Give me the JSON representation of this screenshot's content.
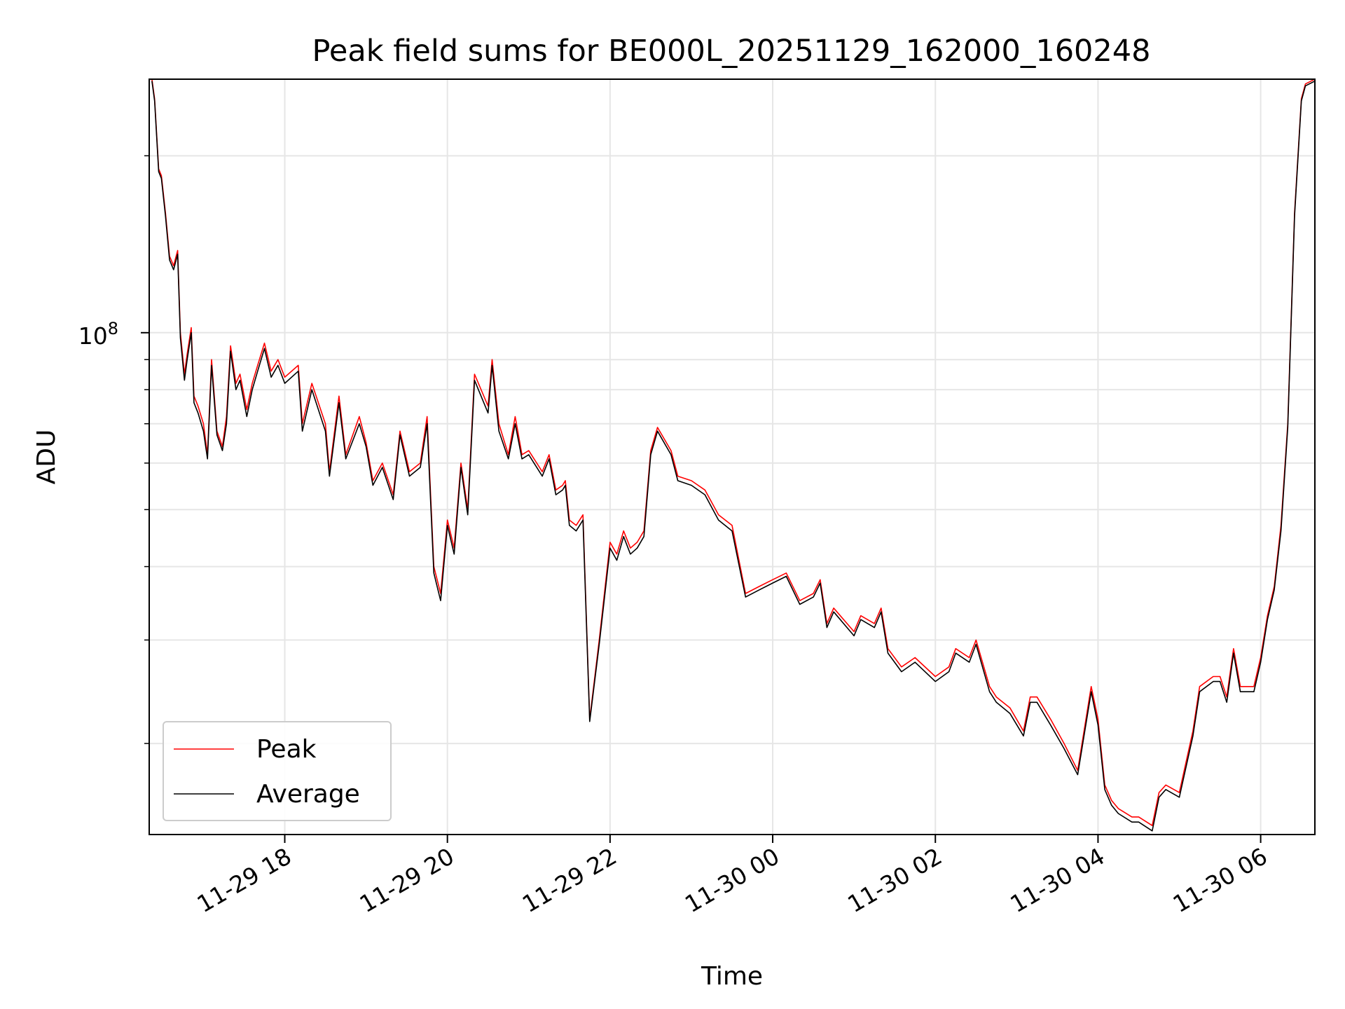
{
  "chart_data": {
    "type": "line",
    "title": "Peak field sums for BE000L_20251129_162000_160248",
    "xlabel": "Time",
    "ylabel": "ADU",
    "x_is_datetime": true,
    "xlim": [
      "2025-11-29 16:20",
      "2025-11-30 06:40"
    ],
    "ylog": true,
    "ylim": [
      14000000,
      270000000
    ],
    "ytick_labels": [
      {
        "value": 100000000,
        "base": "10",
        "exp": "8"
      }
    ],
    "xtick_labels": [
      {
        "value": "2025-11-29 18:00",
        "label": "11-29 18"
      },
      {
        "value": "2025-11-29 20:00",
        "label": "11-29 20"
      },
      {
        "value": "2025-11-29 22:00",
        "label": "11-29 22"
      },
      {
        "value": "2025-11-30 00:00",
        "label": "11-30 00"
      },
      {
        "value": "2025-11-30 02:00",
        "label": "11-30 02"
      },
      {
        "value": "2025-11-30 04:00",
        "label": "11-30 04"
      },
      {
        "value": "2025-11-30 06:00",
        "label": "11-30 06"
      }
    ],
    "grid": true,
    "legend_position": "lower-left",
    "series": [
      {
        "name": "Peak",
        "color": "#ff0000",
        "x": [
          "2025-11-29 16:22",
          "2025-11-29 16:24",
          "2025-11-29 16:27",
          "2025-11-29 16:29",
          "2025-11-29 16:32",
          "2025-11-29 16:35",
          "2025-11-29 16:38",
          "2025-11-29 16:41",
          "2025-11-29 16:43",
          "2025-11-29 16:46",
          "2025-11-29 16:48",
          "2025-11-29 16:51",
          "2025-11-29 16:53",
          "2025-11-29 16:56",
          "2025-11-29 17:00",
          "2025-11-29 17:03",
          "2025-11-29 17:06",
          "2025-11-29 17:10",
          "2025-11-29 17:14",
          "2025-11-29 17:17",
          "2025-11-29 17:20",
          "2025-11-29 17:24",
          "2025-11-29 17:27",
          "2025-11-29 17:32",
          "2025-11-29 17:36",
          "2025-11-29 17:40",
          "2025-11-29 17:45",
          "2025-11-29 17:50",
          "2025-11-29 17:55",
          "2025-11-29 18:00",
          "2025-11-29 18:10",
          "2025-11-29 18:13",
          "2025-11-29 18:20",
          "2025-11-29 18:30",
          "2025-11-29 18:33",
          "2025-11-29 18:40",
          "2025-11-29 18:45",
          "2025-11-29 18:55",
          "2025-11-29 19:00",
          "2025-11-29 19:05",
          "2025-11-29 19:12",
          "2025-11-29 19:20",
          "2025-11-29 19:25",
          "2025-11-29 19:32",
          "2025-11-29 19:40",
          "2025-11-29 19:45",
          "2025-11-29 19:50",
          "2025-11-29 19:55",
          "2025-11-29 20:00",
          "2025-11-29 20:05",
          "2025-11-29 20:10",
          "2025-11-29 20:15",
          "2025-11-29 20:20",
          "2025-11-29 20:30",
          "2025-11-29 20:33",
          "2025-11-29 20:38",
          "2025-11-29 20:45",
          "2025-11-29 20:50",
          "2025-11-29 20:55",
          "2025-11-29 21:00",
          "2025-11-29 21:10",
          "2025-11-29 21:15",
          "2025-11-29 21:20",
          "2025-11-29 21:25",
          "2025-11-29 21:27",
          "2025-11-29 21:30",
          "2025-11-29 21:35",
          "2025-11-29 21:40",
          "2025-11-29 21:45",
          "2025-11-29 21:52",
          "2025-11-29 22:00",
          "2025-11-29 22:05",
          "2025-11-29 22:10",
          "2025-11-29 22:15",
          "2025-11-29 22:20",
          "2025-11-29 22:25",
          "2025-11-29 22:30",
          "2025-11-29 22:35",
          "2025-11-29 22:45",
          "2025-11-29 22:50",
          "2025-11-29 23:00",
          "2025-11-29 23:10",
          "2025-11-29 23:20",
          "2025-11-29 23:30",
          "2025-11-29 23:40",
          "2025-11-29 23:50",
          "2025-11-30 00:00",
          "2025-11-30 00:10",
          "2025-11-30 00:20",
          "2025-11-30 00:30",
          "2025-11-30 00:35",
          "2025-11-30 00:40",
          "2025-11-30 00:45",
          "2025-11-30 01:00",
          "2025-11-30 01:05",
          "2025-11-30 01:15",
          "2025-11-30 01:20",
          "2025-11-30 01:25",
          "2025-11-30 01:35",
          "2025-11-30 01:45",
          "2025-11-30 02:00",
          "2025-11-30 02:10",
          "2025-11-30 02:15",
          "2025-11-30 02:25",
          "2025-11-30 02:30",
          "2025-11-30 02:40",
          "2025-11-30 02:45",
          "2025-11-30 02:55",
          "2025-11-30 03:05",
          "2025-11-30 03:10",
          "2025-11-30 03:15",
          "2025-11-30 03:25",
          "2025-11-30 03:35",
          "2025-11-30 03:45",
          "2025-11-30 03:55",
          "2025-11-30 04:00",
          "2025-11-30 04:05",
          "2025-11-30 04:10",
          "2025-11-30 04:15",
          "2025-11-30 04:25",
          "2025-11-30 04:30",
          "2025-11-30 04:40",
          "2025-11-30 04:45",
          "2025-11-30 04:50",
          "2025-11-30 05:00",
          "2025-11-30 05:10",
          "2025-11-30 05:15",
          "2025-11-30 05:25",
          "2025-11-30 05:30",
          "2025-11-30 05:35",
          "2025-11-30 05:40",
          "2025-11-30 05:45",
          "2025-11-30 05:50",
          "2025-11-30 05:55",
          "2025-11-30 06:00",
          "2025-11-30 06:05",
          "2025-11-30 06:10",
          "2025-11-30 06:15",
          "2025-11-30 06:20",
          "2025-11-30 06:25",
          "2025-11-30 06:30",
          "2025-11-30 06:33",
          "2025-11-30 06:40"
        ],
        "values": [
          270000000,
          250000000,
          190000000,
          185000000,
          160000000,
          135000000,
          130000000,
          138000000,
          100000000,
          85000000,
          92000000,
          102000000,
          78000000,
          75000000,
          70000000,
          62000000,
          90000000,
          68000000,
          64000000,
          72000000,
          95000000,
          82000000,
          85000000,
          74000000,
          82000000,
          88000000,
          96000000,
          86000000,
          90000000,
          84000000,
          88000000,
          70000000,
          82000000,
          70000000,
          58000000,
          78000000,
          62000000,
          72000000,
          65000000,
          56000000,
          60000000,
          53000000,
          68000000,
          58000000,
          60000000,
          72000000,
          40000000,
          36000000,
          48000000,
          43000000,
          60000000,
          50000000,
          85000000,
          75000000,
          90000000,
          70000000,
          62000000,
          72000000,
          62000000,
          63000000,
          58000000,
          62000000,
          54000000,
          55000000,
          56000000,
          48000000,
          47000000,
          49000000,
          22000000,
          30000000,
          44000000,
          42000000,
          46000000,
          43000000,
          44000000,
          46000000,
          63000000,
          69000000,
          63000000,
          57000000,
          56000000,
          54000000,
          49000000,
          47000000,
          36000000,
          37000000,
          38000000,
          39000000,
          35000000,
          36000000,
          38000000,
          32000000,
          34000000,
          31000000,
          33000000,
          32000000,
          34000000,
          29000000,
          27000000,
          28000000,
          26000000,
          27000000,
          29000000,
          28000000,
          30000000,
          25000000,
          24000000,
          23000000,
          21000000,
          24000000,
          24000000,
          22000000,
          20000000,
          18000000,
          25000000,
          22000000,
          17000000,
          16000000,
          15500000,
          15000000,
          15000000,
          14500000,
          16500000,
          17000000,
          16500000,
          21000000,
          25000000,
          26000000,
          26000000,
          24000000,
          29000000,
          25000000,
          25000000,
          25000000,
          28000000,
          33000000,
          37000000,
          47000000,
          70000000,
          160000000,
          250000000,
          265000000,
          270000000
        ]
      },
      {
        "name": "Average",
        "color": "#000000",
        "x": [
          "2025-11-29 16:22",
          "2025-11-29 16:24",
          "2025-11-29 16:27",
          "2025-11-29 16:29",
          "2025-11-29 16:32",
          "2025-11-29 16:35",
          "2025-11-29 16:38",
          "2025-11-29 16:41",
          "2025-11-29 16:43",
          "2025-11-29 16:46",
          "2025-11-29 16:48",
          "2025-11-29 16:51",
          "2025-11-29 16:53",
          "2025-11-29 16:56",
          "2025-11-29 17:00",
          "2025-11-29 17:03",
          "2025-11-29 17:06",
          "2025-11-29 17:10",
          "2025-11-29 17:14",
          "2025-11-29 17:17",
          "2025-11-29 17:20",
          "2025-11-29 17:24",
          "2025-11-29 17:27",
          "2025-11-29 17:32",
          "2025-11-29 17:36",
          "2025-11-29 17:40",
          "2025-11-29 17:45",
          "2025-11-29 17:50",
          "2025-11-29 17:55",
          "2025-11-29 18:00",
          "2025-11-29 18:10",
          "2025-11-29 18:13",
          "2025-11-29 18:20",
          "2025-11-29 18:30",
          "2025-11-29 18:33",
          "2025-11-29 18:40",
          "2025-11-29 18:45",
          "2025-11-29 18:55",
          "2025-11-29 19:00",
          "2025-11-29 19:05",
          "2025-11-29 19:12",
          "2025-11-29 19:20",
          "2025-11-29 19:25",
          "2025-11-29 19:32",
          "2025-11-29 19:40",
          "2025-11-29 19:45",
          "2025-11-29 19:50",
          "2025-11-29 19:55",
          "2025-11-29 20:00",
          "2025-11-29 20:05",
          "2025-11-29 20:10",
          "2025-11-29 20:15",
          "2025-11-29 20:20",
          "2025-11-29 20:30",
          "2025-11-29 20:33",
          "2025-11-29 20:38",
          "2025-11-29 20:45",
          "2025-11-29 20:50",
          "2025-11-29 20:55",
          "2025-11-29 21:00",
          "2025-11-29 21:10",
          "2025-11-29 21:15",
          "2025-11-29 21:20",
          "2025-11-29 21:25",
          "2025-11-29 21:27",
          "2025-11-29 21:30",
          "2025-11-29 21:35",
          "2025-11-29 21:40",
          "2025-11-29 21:45",
          "2025-11-29 21:52",
          "2025-11-29 22:00",
          "2025-11-29 22:05",
          "2025-11-29 22:10",
          "2025-11-29 22:15",
          "2025-11-29 22:20",
          "2025-11-29 22:25",
          "2025-11-29 22:30",
          "2025-11-29 22:35",
          "2025-11-29 22:45",
          "2025-11-29 22:50",
          "2025-11-29 23:00",
          "2025-11-29 23:10",
          "2025-11-29 23:20",
          "2025-11-29 23:30",
          "2025-11-29 23:40",
          "2025-11-29 23:50",
          "2025-11-30 00:00",
          "2025-11-30 00:10",
          "2025-11-30 00:20",
          "2025-11-30 00:30",
          "2025-11-30 00:35",
          "2025-11-30 00:40",
          "2025-11-30 00:45",
          "2025-11-30 01:00",
          "2025-11-30 01:05",
          "2025-11-30 01:15",
          "2025-11-30 01:20",
          "2025-11-30 01:25",
          "2025-11-30 01:35",
          "2025-11-30 01:45",
          "2025-11-30 02:00",
          "2025-11-30 02:10",
          "2025-11-30 02:15",
          "2025-11-30 02:25",
          "2025-11-30 02:30",
          "2025-11-30 02:40",
          "2025-11-30 02:45",
          "2025-11-30 02:55",
          "2025-11-30 03:05",
          "2025-11-30 03:10",
          "2025-11-30 03:15",
          "2025-11-30 03:25",
          "2025-11-30 03:35",
          "2025-11-30 03:45",
          "2025-11-30 03:55",
          "2025-11-30 04:00",
          "2025-11-30 04:05",
          "2025-11-30 04:10",
          "2025-11-30 04:15",
          "2025-11-30 04:25",
          "2025-11-30 04:30",
          "2025-11-30 04:40",
          "2025-11-30 04:45",
          "2025-11-30 04:50",
          "2025-11-30 05:00",
          "2025-11-30 05:10",
          "2025-11-30 05:15",
          "2025-11-30 05:25",
          "2025-11-30 05:30",
          "2025-11-30 05:35",
          "2025-11-30 05:40",
          "2025-11-30 05:45",
          "2025-11-30 05:50",
          "2025-11-30 05:55",
          "2025-11-30 06:00",
          "2025-11-30 06:05",
          "2025-11-30 06:10",
          "2025-11-30 06:15",
          "2025-11-30 06:20",
          "2025-11-30 06:25",
          "2025-11-30 06:30",
          "2025-11-30 06:33",
          "2025-11-30 06:40"
        ],
        "values": [
          268000000,
          248000000,
          188000000,
          183000000,
          158000000,
          133000000,
          128000000,
          136000000,
          98000000,
          83000000,
          90000000,
          100000000,
          76000000,
          73000000,
          68000000,
          61000000,
          88000000,
          67000000,
          63000000,
          70000000,
          93000000,
          80000000,
          83000000,
          72000000,
          80000000,
          86000000,
          94000000,
          84000000,
          88000000,
          82000000,
          86000000,
          68000000,
          80000000,
          68000000,
          57000000,
          76000000,
          61000000,
          70000000,
          64000000,
          55000000,
          59000000,
          52000000,
          67000000,
          57000000,
          59000000,
          70000000,
          39000000,
          35000000,
          47000000,
          42000000,
          59000000,
          49000000,
          83000000,
          73000000,
          88000000,
          68000000,
          61000000,
          70000000,
          61000000,
          62000000,
          57000000,
          61000000,
          53000000,
          54000000,
          55000000,
          47000000,
          46000000,
          48000000,
          21800000,
          29500000,
          43000000,
          41000000,
          45000000,
          42000000,
          43000000,
          45000000,
          62000000,
          68000000,
          62000000,
          56000000,
          55000000,
          53000000,
          48000000,
          46000000,
          35500000,
          36500000,
          37500000,
          38500000,
          34500000,
          35500000,
          37500000,
          31500000,
          33500000,
          30500000,
          32500000,
          31500000,
          33500000,
          28500000,
          26500000,
          27500000,
          25500000,
          26500000,
          28500000,
          27500000,
          29500000,
          24500000,
          23500000,
          22500000,
          20600000,
          23500000,
          23500000,
          21500000,
          19600000,
          17700000,
          24500000,
          21500000,
          16700000,
          15700000,
          15200000,
          14700000,
          14700000,
          14200000,
          16200000,
          16700000,
          16200000,
          20600000,
          24500000,
          25500000,
          25500000,
          23500000,
          28500000,
          24500000,
          24500000,
          24500000,
          27500000,
          32500000,
          36500000,
          46000000,
          69000000,
          158000000,
          248000000,
          263000000,
          268000000
        ]
      }
    ]
  }
}
